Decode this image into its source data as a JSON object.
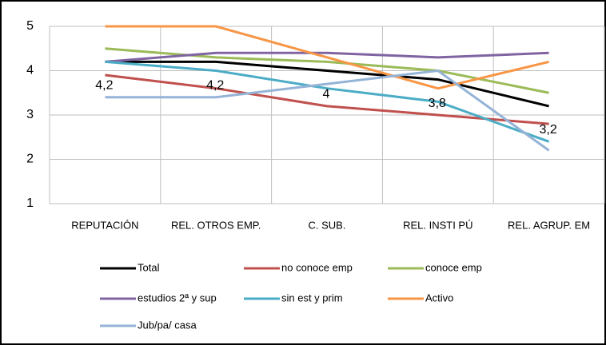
{
  "chart_data": {
    "type": "line",
    "categories": [
      "REPUTACIÓN",
      "REL. OTROS EMP.",
      "C. SUB.",
      "REL. INSTI PÚ",
      "REL. AGRUP. EM"
    ],
    "series": [
      {
        "name": "Total",
        "color": "#000000",
        "values": [
          4.2,
          4.2,
          4.0,
          3.8,
          3.2
        ],
        "value_labels": [
          "4,2",
          "4,2",
          "4",
          "3,8",
          "3,2"
        ]
      },
      {
        "name": "no conoce emp",
        "color": "#c0504d",
        "values": [
          3.9,
          3.6,
          3.2,
          3.0,
          2.8
        ]
      },
      {
        "name": "conoce emp",
        "color": "#9bbb59",
        "values": [
          4.5,
          4.3,
          4.2,
          4.0,
          3.5
        ]
      },
      {
        "name": "estudios 2ª y sup",
        "color": "#8064a2",
        "values": [
          4.2,
          4.4,
          4.4,
          4.3,
          4.4
        ]
      },
      {
        "name": "sin est y prim",
        "color": "#4bacc6",
        "values": [
          4.2,
          4.0,
          3.6,
          3.3,
          2.4
        ]
      },
      {
        "name": "Activo",
        "color": "#f79646",
        "values": [
          5.0,
          5.0,
          4.3,
          3.6,
          4.2
        ]
      },
      {
        "name": "Jub/pa/ casa",
        "color": "#95b3d7",
        "values": [
          3.4,
          3.4,
          3.7,
          4.0,
          2.2
        ]
      }
    ],
    "ylim": [
      1,
      5
    ],
    "yticks": [
      1,
      2,
      3,
      4,
      5
    ],
    "grid": true
  }
}
